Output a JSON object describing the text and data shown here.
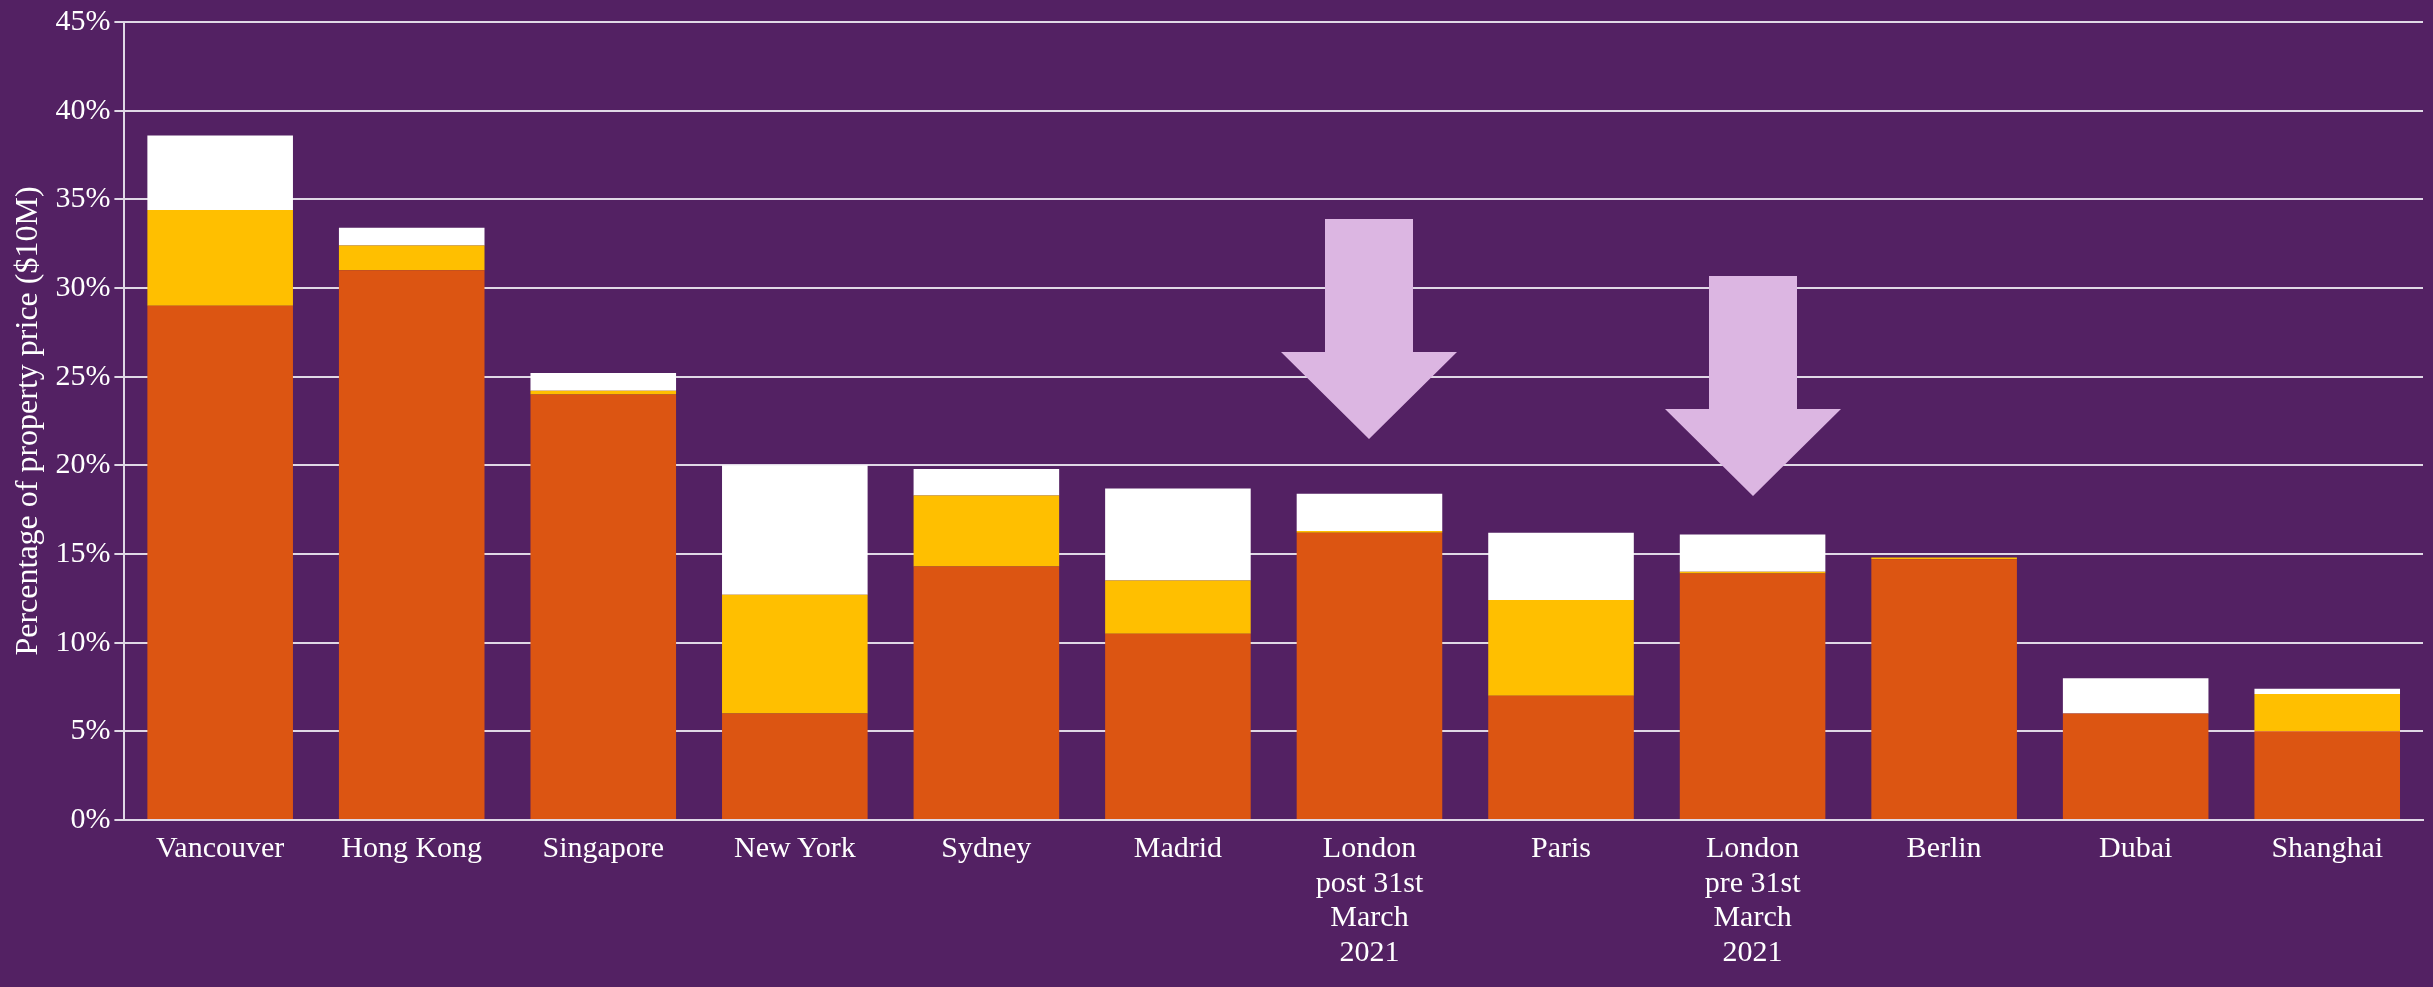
{
  "chart_data": {
    "type": "bar",
    "stacked": true,
    "ylabel": "Percentage of property price ($10M)",
    "categories": [
      "Vancouver",
      "Hong Kong",
      "Singapore",
      "New York",
      "Sydney",
      "Madrid",
      "London post 31st March 2021",
      "Paris",
      "London pre 31st March 2021",
      "Berlin",
      "Dubai",
      "Shanghai"
    ],
    "series": [
      {
        "color": "#dc5512",
        "values": [
          29.0,
          31.0,
          24.0,
          6.0,
          14.3,
          10.5,
          16.2,
          7.0,
          13.9,
          14.7,
          6.0,
          5.0
        ]
      },
      {
        "color": "#ffbf00",
        "values": [
          5.4,
          1.4,
          0.2,
          6.7,
          4.0,
          3.0,
          0.1,
          5.4,
          0.1,
          0.1,
          0,
          2.1
        ]
      },
      {
        "color": "#ffffff",
        "values": [
          4.2,
          1.0,
          1.0,
          7.3,
          1.5,
          5.2,
          2.1,
          3.8,
          2.1,
          0,
          2.0,
          0.3
        ]
      }
    ],
    "ylim": [
      0,
      45
    ],
    "yticks": [
      {
        "value": 0,
        "label": "0%"
      },
      {
        "value": 5,
        "label": "5%"
      },
      {
        "value": 10,
        "label": "10%"
      },
      {
        "value": 15,
        "label": "15%"
      },
      {
        "value": 20,
        "label": "20%"
      },
      {
        "value": 25,
        "label": "25%"
      },
      {
        "value": 30,
        "label": "30%"
      },
      {
        "value": 35,
        "label": "35%"
      },
      {
        "value": 40,
        "label": "40%"
      },
      {
        "value": 45,
        "label": "45%"
      }
    ],
    "grid": "y",
    "legend": false
  }
}
